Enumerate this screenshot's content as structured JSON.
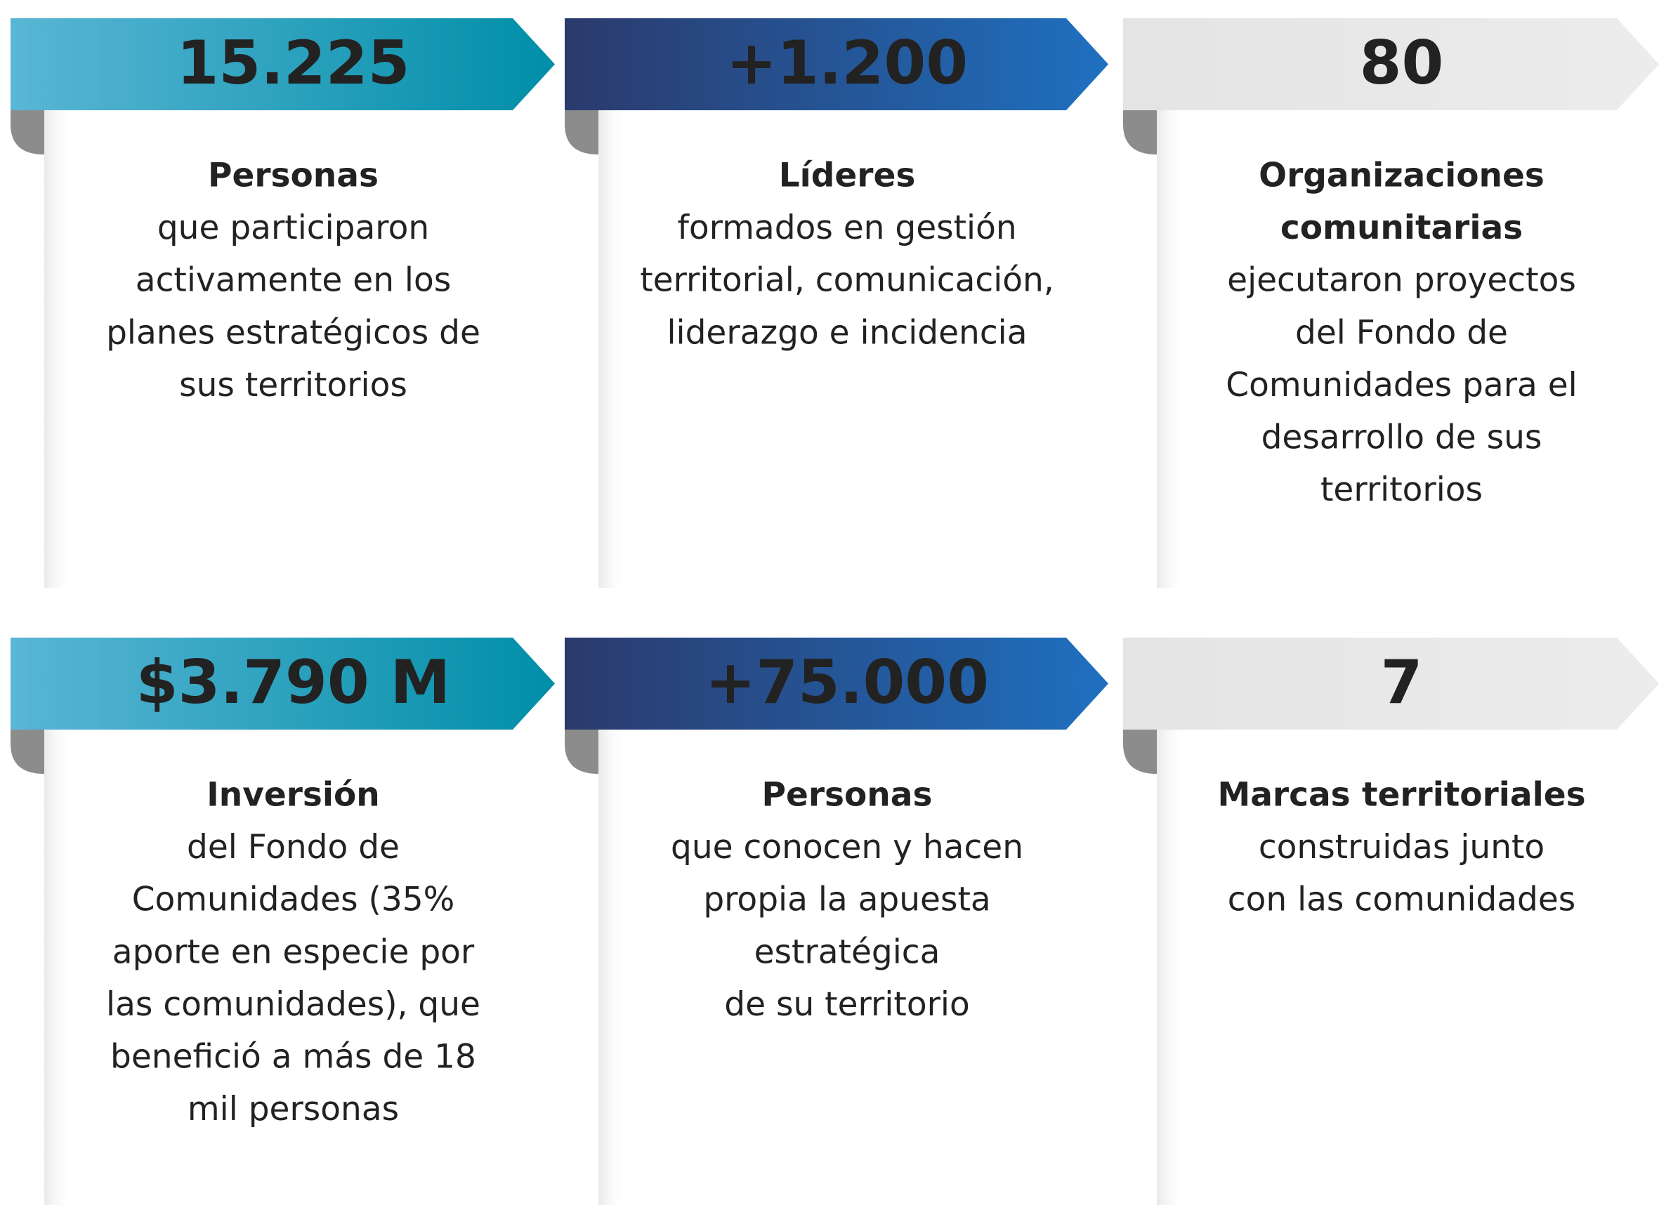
{
  "cards": [
    {
      "value": "15.225",
      "heading": [
        "Personas"
      ],
      "text": [
        "que participaron",
        "activamente en los",
        "planes estratégicos de",
        "sus territorios"
      ]
    },
    {
      "value": "+1.200",
      "heading": [
        "Líderes"
      ],
      "text": [
        "formados en gestión",
        "territorial, comunicación,",
        "liderazgo e incidencia"
      ]
    },
    {
      "value": "80",
      "heading": [
        "Organizaciones",
        "comunitarias"
      ],
      "text": [
        "ejecutaron proyectos",
        "del Fondo de",
        "Comunidades para el",
        "desarrollo de sus",
        "territorios"
      ]
    },
    {
      "value": "$3.790 M",
      "heading": [
        "Inversión"
      ],
      "text": [
        "del Fondo de",
        "Comunidades (35%",
        "aporte en especie por",
        "las comunidades), que",
        "benefició a más de 18",
        "mil personas"
      ]
    },
    {
      "value": "+75.000",
      "heading": [
        "Personas"
      ],
      "text": [
        "que conocen y hacen",
        "propia la apuesta",
        "estratégica",
        "de su territorio"
      ]
    },
    {
      "value": "7",
      "heading": [
        "Marcas territoriales"
      ],
      "text": [
        "construidas junto",
        "con las comunidades"
      ]
    }
  ]
}
